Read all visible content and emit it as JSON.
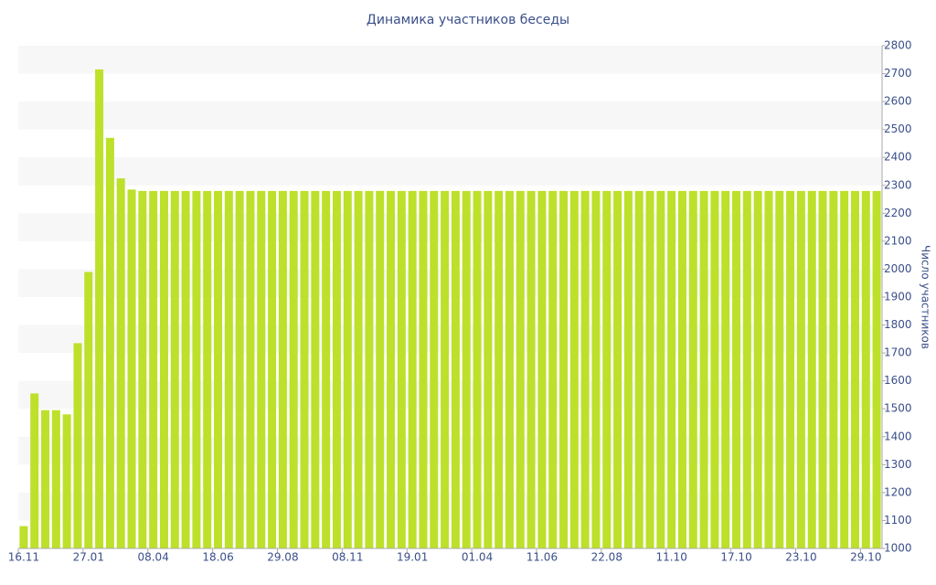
{
  "chart_data": {
    "type": "bar",
    "title": "Динамика участников беседы",
    "y_label": "Число участников",
    "categories": [
      "16.11",
      null,
      null,
      null,
      null,
      null,
      "27.01",
      null,
      null,
      null,
      null,
      null,
      "08.04",
      null,
      null,
      null,
      null,
      null,
      "18.06",
      null,
      null,
      null,
      null,
      null,
      "29.08",
      null,
      null,
      null,
      null,
      null,
      "08.11",
      null,
      null,
      null,
      null,
      null,
      "19.01",
      null,
      null,
      null,
      null,
      null,
      "01.04",
      null,
      null,
      null,
      null,
      null,
      "11.06",
      null,
      null,
      null,
      null,
      null,
      "22.08",
      null,
      null,
      null,
      null,
      null,
      "11.10",
      null,
      null,
      null,
      null,
      null,
      "17.10",
      null,
      null,
      null,
      null,
      null,
      "23.10",
      null,
      null,
      null,
      null,
      null,
      "29.10",
      null
    ],
    "values": [
      1080,
      1555,
      1495,
      1495,
      1480,
      1735,
      1990,
      2715,
      2470,
      2325,
      2285,
      2280,
      2280,
      2280,
      2280,
      2280,
      2280,
      2280,
      2280,
      2280,
      2280,
      2280,
      2280,
      2280,
      2280,
      2280,
      2280,
      2280,
      2280,
      2280,
      2280,
      2280,
      2280,
      2280,
      2280,
      2280,
      2280,
      2280,
      2280,
      2280,
      2280,
      2280,
      2280,
      2280,
      2280,
      2280,
      2280,
      2280,
      2280,
      2280,
      2280,
      2280,
      2280,
      2280,
      2280,
      2280,
      2280,
      2280,
      2280,
      2280,
      2280,
      2280,
      2280,
      2280,
      2280,
      2280,
      2280,
      2280,
      2280,
      2280,
      2280,
      2280,
      2280,
      2280,
      2280,
      2280,
      2280,
      2280,
      2280,
      2280
    ],
    "color": "#bde02a",
    "ylim": [
      1000,
      2800
    ],
    "yticks": [
      1000,
      1100,
      1200,
      1300,
      1400,
      1500,
      1600,
      1700,
      1800,
      1900,
      2000,
      2100,
      2200,
      2300,
      2400,
      2500,
      2600,
      2700,
      2800
    ],
    "grid": "bands"
  }
}
